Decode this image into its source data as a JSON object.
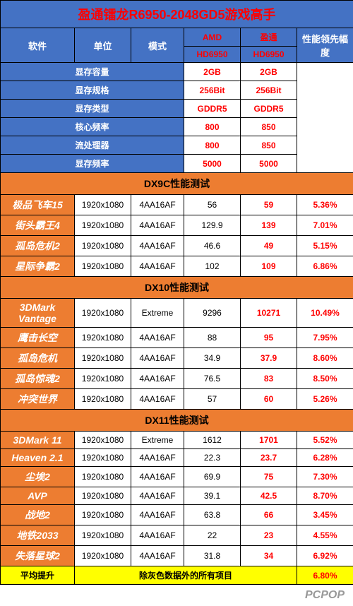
{
  "title": "盈通镭龙R6950-2048GD5游戏高手",
  "headers": {
    "software": "软件",
    "unit": "单位",
    "mode": "模式",
    "amd": "AMD",
    "yeston": "盈通",
    "hd6950_a": "HD6950",
    "hd6950_b": "HD6950",
    "perf_lead": "性能领先幅度"
  },
  "specs": [
    {
      "label": "显存容量",
      "a": "2GB",
      "b": "2GB"
    },
    {
      "label": "显存规格",
      "a": "256Bit",
      "b": "256Bit"
    },
    {
      "label": "显存类型",
      "a": "GDDR5",
      "b": "GDDR5"
    },
    {
      "label": "核心频率",
      "a": "800",
      "b": "850"
    },
    {
      "label": "流处理器",
      "a": "800",
      "b": "850"
    },
    {
      "label": "显存频率",
      "a": "5000",
      "b": "5000"
    }
  ],
  "sections": [
    {
      "title": "DX9C性能测试",
      "rows": [
        {
          "name": "极品飞车15",
          "res": "1920x1080",
          "mode": "4AA16AF",
          "a": "56",
          "b": "59",
          "pct": "5.36%"
        },
        {
          "name": "街头霸王4",
          "res": "1920x1080",
          "mode": "4AA16AF",
          "a": "129.9",
          "b": "139",
          "pct": "7.01%"
        },
        {
          "name": "孤岛危机2",
          "res": "1920x1080",
          "mode": "4AA16AF",
          "a": "46.6",
          "b": "49",
          "pct": "5.15%"
        },
        {
          "name": "星际争霸2",
          "res": "1920x1080",
          "mode": "4AA16AF",
          "a": "102",
          "b": "109",
          "pct": "6.86%"
        }
      ]
    },
    {
      "title": "DX10性能测试",
      "rows": [
        {
          "name": "3DMark Vantage",
          "res": "1920x1080",
          "mode": "Extreme",
          "a": "9296",
          "b": "10271",
          "pct": "10.49%"
        },
        {
          "name": "鹰击长空",
          "res": "1920x1080",
          "mode": "4AA16AF",
          "a": "88",
          "b": "95",
          "pct": "7.95%"
        },
        {
          "name": "孤岛危机",
          "res": "1920x1080",
          "mode": "4AA16AF",
          "a": "34.9",
          "b": "37.9",
          "pct": "8.60%"
        },
        {
          "name": "孤岛惊魂2",
          "res": "1920x1080",
          "mode": "4AA16AF",
          "a": "76.5",
          "b": "83",
          "pct": "8.50%"
        },
        {
          "name": "冲突世界",
          "res": "1920x1080",
          "mode": "4AA16AF",
          "a": "57",
          "b": "60",
          "pct": "5.26%"
        }
      ]
    },
    {
      "title": "DX11性能测试",
      "rows": [
        {
          "name": "3DMark 11",
          "res": "1920x1080",
          "mode": "Extreme",
          "a": "1612",
          "b": "1701",
          "pct": "5.52%"
        },
        {
          "name": "Heaven 2.1",
          "res": "1920x1080",
          "mode": "4AA16AF",
          "a": "22.3",
          "b": "23.7",
          "pct": "6.28%"
        },
        {
          "name": "尘埃2",
          "res": "1920x1080",
          "mode": "4AA16AF",
          "a": "69.9",
          "b": "75",
          "pct": "7.30%"
        },
        {
          "name": "AVP",
          "res": "1920x1080",
          "mode": "4AA16AF",
          "a": "39.1",
          "b": "42.5",
          "pct": "8.70%"
        },
        {
          "name": "战地2",
          "res": "1920x1080",
          "mode": "4AA16AF",
          "a": "63.8",
          "b": "66",
          "pct": "3.45%"
        },
        {
          "name": "地铁2033",
          "res": "1920x1080",
          "mode": "4AA16AF",
          "a": "22",
          "b": "23",
          "pct": "4.55%"
        },
        {
          "name": "失落星球2",
          "res": "1920x1080",
          "mode": "4AA16AF",
          "a": "31.8",
          "b": "34",
          "pct": "6.92%"
        }
      ]
    }
  ],
  "avg": {
    "label": "平均提升",
    "note": "除灰色数据外的所有项目",
    "pct": "6.80%"
  },
  "watermark": "PCPOP"
}
